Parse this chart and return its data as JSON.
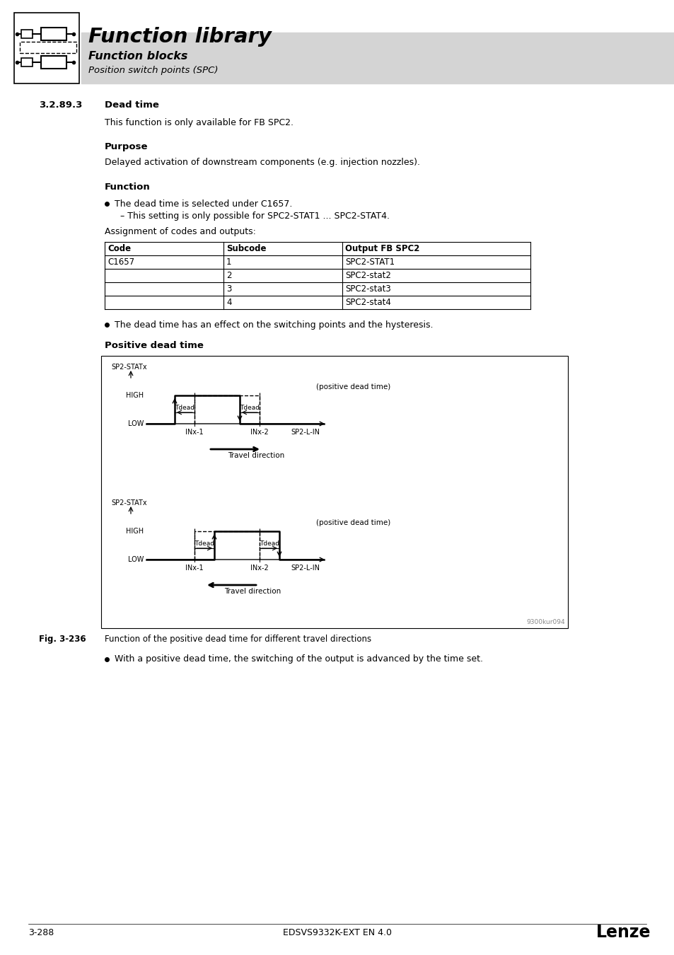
{
  "title": "Function library",
  "subtitle1": "Function blocks",
  "subtitle2": "Position switch points (SPC)",
  "section": "3.2.89.3",
  "section_title": "Dead time",
  "para1": "This function is only available for FB SPC2.",
  "head_purpose": "Purpose",
  "para_purpose": "Delayed activation of downstream components (e.g. injection nozzles).",
  "head_function": "Function",
  "bullet1": "The dead time is selected under C1657.",
  "sub_bullet1": "– This setting is only possible for SPC2-STAT1 ... SPC2-STAT4.",
  "assign_text": "Assignment of codes and outputs:",
  "table_headers": [
    "Code",
    "Subcode",
    "Output FB SPC2"
  ],
  "table_rows": [
    [
      "C1657",
      "1",
      "SPC2-STAT1"
    ],
    [
      "",
      "2",
      "SPC2-stat2"
    ],
    [
      "",
      "3",
      "SPC2-stat3"
    ],
    [
      "",
      "4",
      "SPC2-stat4"
    ]
  ],
  "bullet2": "The dead time has an effect on the switching points and the hysteresis.",
  "head_positive": "Positive dead time",
  "fig_label": "Fig. 3-236",
  "fig_caption": "Function of the positive dead time for different travel directions",
  "bullet3": "With a positive dead time, the switching of the output is advanced by the time set.",
  "footer_left": "3-288",
  "footer_center": "EDSVS9332K-EXT EN 4.0",
  "footer_right": "Lenze",
  "watermark": "9300kur094",
  "bg_color": "#ffffff",
  "header_bg": "#d4d4d4",
  "table_border": "#000000"
}
